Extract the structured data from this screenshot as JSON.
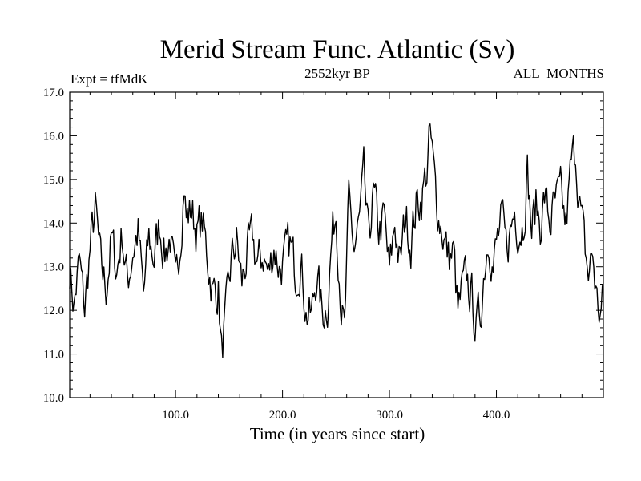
{
  "chart_data": {
    "type": "line",
    "title": "Merid Stream Func. Atlantic (Sv)",
    "subtitle_left": "Expt = tfMdK",
    "subtitle_center": "2552kyr BP",
    "subtitle_right": "ALL_MONTHS",
    "xlabel": "Time (in years since start)",
    "ylabel": "",
    "xlim": [
      1,
      500
    ],
    "ylim": [
      10.0,
      17.0
    ],
    "x_ticks": [
      100,
      200,
      300,
      400
    ],
    "x_tick_labels": [
      "100.0",
      "200.0",
      "300.0",
      "400.0"
    ],
    "y_ticks": [
      10,
      11,
      12,
      13,
      14,
      15,
      16,
      17
    ],
    "y_tick_labels": [
      "10.0",
      "11.0",
      "12.0",
      "13.0",
      "14.0",
      "15.0",
      "16.0",
      "17.0"
    ],
    "grid": false,
    "line_color": "#000000",
    "anchors": [
      [
        1,
        13.0
      ],
      [
        5,
        12.1
      ],
      [
        10,
        13.1
      ],
      [
        15,
        12.0
      ],
      [
        20,
        13.4
      ],
      [
        25,
        14.3
      ],
      [
        30,
        13.0
      ],
      [
        35,
        12.5
      ],
      [
        40,
        13.6
      ],
      [
        45,
        12.9
      ],
      [
        50,
        13.8
      ],
      [
        55,
        12.6
      ],
      [
        60,
        13.4
      ],
      [
        65,
        13.8
      ],
      [
        70,
        12.3
      ],
      [
        75,
        13.6
      ],
      [
        80,
        13.2
      ],
      [
        85,
        14.0
      ],
      [
        90,
        13.3
      ],
      [
        95,
        13.7
      ],
      [
        100,
        12.4
      ],
      [
        105,
        13.9
      ],
      [
        108,
        15.0
      ],
      [
        110,
        14.1
      ],
      [
        115,
        14.3
      ],
      [
        120,
        13.8
      ],
      [
        125,
        14.0
      ],
      [
        130,
        13.2
      ],
      [
        135,
        12.4
      ],
      [
        140,
        12.5
      ],
      [
        143,
        11.0
      ],
      [
        148,
        12.0
      ],
      [
        152,
        13.1
      ],
      [
        157,
        13.6
      ],
      [
        162,
        12.6
      ],
      [
        167,
        13.3
      ],
      [
        172,
        13.6
      ],
      [
        177,
        13.0
      ],
      [
        182,
        13.3
      ],
      [
        187,
        12.8
      ],
      [
        192,
        13.5
      ],
      [
        197,
        13.0
      ],
      [
        202,
        13.1
      ],
      [
        207,
        13.5
      ],
      [
        212,
        12.9
      ],
      [
        217,
        13.2
      ],
      [
        222,
        12.0
      ],
      [
        227,
        11.8
      ],
      [
        232,
        12.9
      ],
      [
        237,
        11.9
      ],
      [
        242,
        12.2
      ],
      [
        246,
        13.6
      ],
      [
        250,
        14.3
      ],
      [
        255,
        12.2
      ],
      [
        258,
        11.4
      ],
      [
        262,
        14.4
      ],
      [
        267,
        13.4
      ],
      [
        272,
        14.0
      ],
      [
        276,
        15.0
      ],
      [
        280,
        13.6
      ],
      [
        285,
        14.6
      ],
      [
        290,
        13.8
      ],
      [
        295,
        14.1
      ],
      [
        300,
        12.8
      ],
      [
        305,
        14.0
      ],
      [
        310,
        13.0
      ],
      [
        315,
        14.2
      ],
      [
        320,
        13.6
      ],
      [
        325,
        14.4
      ],
      [
        330,
        14.6
      ],
      [
        335,
        15.2
      ],
      [
        338,
        16.0
      ],
      [
        342,
        15.0
      ],
      [
        346,
        14.2
      ],
      [
        350,
        13.8
      ],
      [
        355,
        13.2
      ],
      [
        360,
        13.3
      ],
      [
        364,
        11.9
      ],
      [
        368,
        12.4
      ],
      [
        372,
        12.7
      ],
      [
        377,
        12.3
      ],
      [
        381,
        11.6
      ],
      [
        385,
        11.9
      ],
      [
        389,
        13.1
      ],
      [
        393,
        13.8
      ],
      [
        397,
        13.0
      ],
      [
        401,
        13.6
      ],
      [
        405,
        14.0
      ],
      [
        409,
        13.4
      ],
      [
        413,
        13.8
      ],
      [
        417,
        14.3
      ],
      [
        421,
        13.9
      ],
      [
        425,
        14.0
      ],
      [
        429,
        15.2
      ],
      [
        433,
        13.8
      ],
      [
        437,
        14.4
      ],
      [
        441,
        14.0
      ],
      [
        445,
        14.6
      ],
      [
        450,
        14.0
      ],
      [
        455,
        14.4
      ],
      [
        460,
        14.6
      ],
      [
        465,
        13.9
      ],
      [
        470,
        15.3
      ],
      [
        474,
        15.7
      ],
      [
        478,
        14.4
      ],
      [
        482,
        13.5
      ],
      [
        486,
        12.8
      ],
      [
        490,
        13.3
      ],
      [
        494,
        12.2
      ],
      [
        497,
        11.9
      ],
      [
        500,
        12.2
      ]
    ],
    "noise_seed": 7,
    "noise_amplitude": 0.5
  }
}
